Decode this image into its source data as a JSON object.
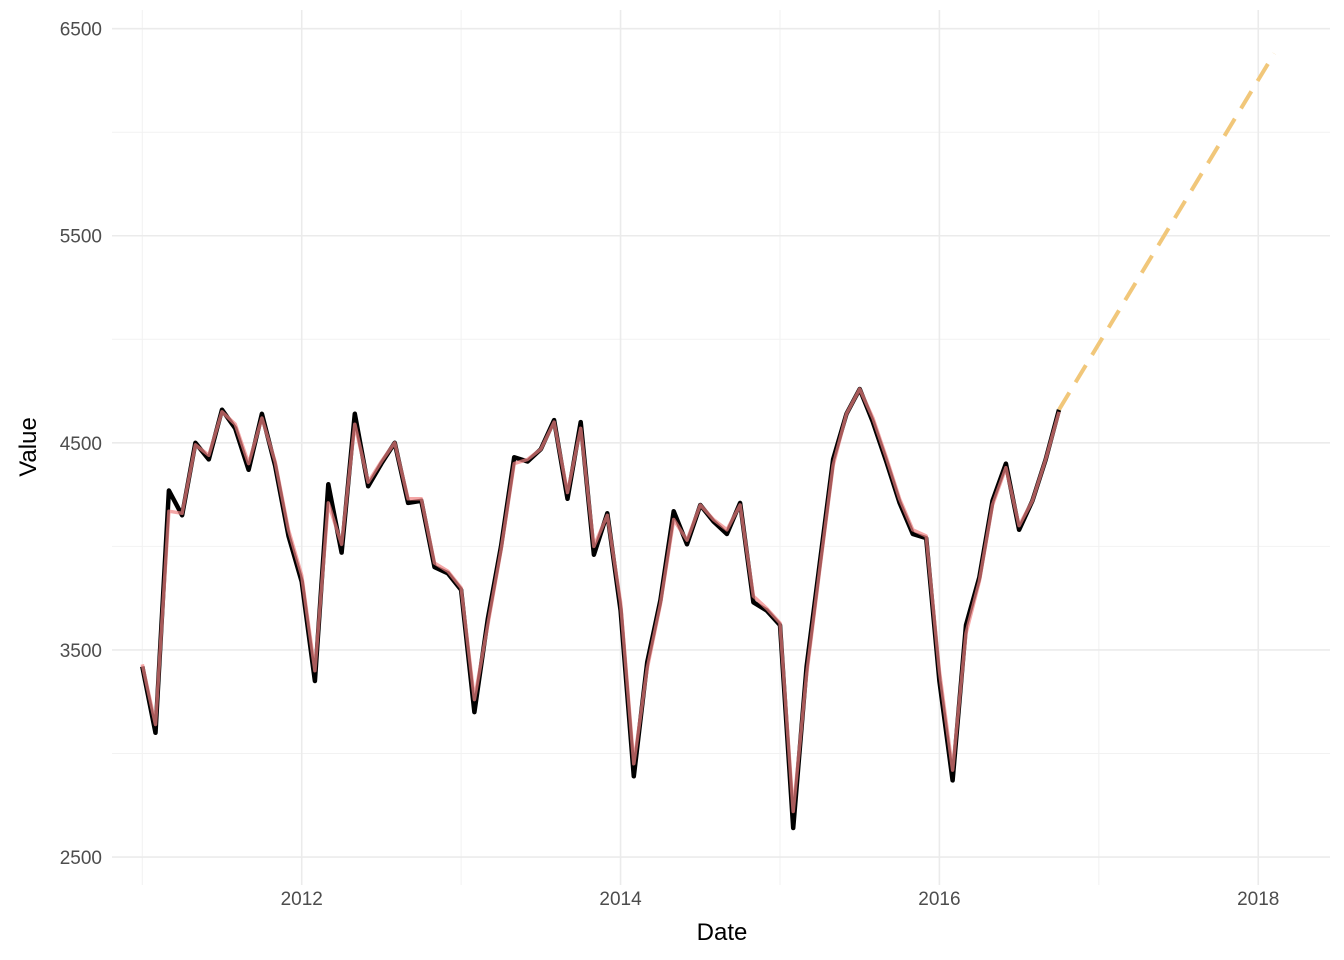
{
  "chart_data": {
    "type": "line",
    "xlabel": "Date",
    "ylabel": "Value",
    "xlim": [
      2010.81,
      2018.45
    ],
    "ylim": [
      2365,
      6590
    ],
    "x_ticks": [
      2012,
      2014,
      2016,
      2018
    ],
    "x_tick_labels": [
      "2012",
      "2014",
      "2016",
      "2018"
    ],
    "y_ticks": [
      2500,
      3500,
      4500,
      5500,
      6500
    ],
    "y_tick_labels": [
      "2500",
      "3500",
      "4500",
      "5500",
      "6500"
    ],
    "grid": true,
    "legend": "none",
    "series": [
      {
        "style": "solid",
        "color": "#000000",
        "x": [
          2011.0,
          2011.083,
          2011.167,
          2011.25,
          2011.333,
          2011.417,
          2011.5,
          2011.583,
          2011.667,
          2011.75,
          2011.833,
          2011.917,
          2012.0,
          2012.083,
          2012.167,
          2012.25,
          2012.333,
          2012.417,
          2012.5,
          2012.583,
          2012.667,
          2012.75,
          2012.833,
          2012.917,
          2013.0,
          2013.083,
          2013.167,
          2013.25,
          2013.333,
          2013.417,
          2013.5,
          2013.583,
          2013.667,
          2013.75,
          2013.833,
          2013.917,
          2014.0,
          2014.083,
          2014.167,
          2014.25,
          2014.333,
          2014.417,
          2014.5,
          2014.583,
          2014.667,
          2014.75,
          2014.833,
          2014.917,
          2015.0,
          2015.083,
          2015.167,
          2015.25,
          2015.333,
          2015.417,
          2015.5,
          2015.583,
          2015.667,
          2015.75,
          2015.833,
          2015.917,
          2016.0,
          2016.083,
          2016.167,
          2016.25,
          2016.333,
          2016.417,
          2016.5,
          2016.583,
          2016.667,
          2016.75
        ],
        "y": [
          3420,
          3100,
          4270,
          4150,
          4500,
          4420,
          4660,
          4570,
          4370,
          4640,
          4390,
          4050,
          3830,
          3350,
          4300,
          3970,
          4640,
          4290,
          4400,
          4500,
          4210,
          4220,
          3900,
          3870,
          3790,
          3200,
          3650,
          4000,
          4430,
          4410,
          4470,
          4610,
          4230,
          4600,
          3960,
          4160,
          3690,
          2890,
          3440,
          3740,
          4170,
          4010,
          4200,
          4120,
          4060,
          4210,
          3730,
          3690,
          3620,
          2640,
          3420,
          3920,
          4420,
          4640,
          4760,
          4600,
          4410,
          4210,
          4060,
          4040,
          3350,
          2870,
          3620,
          3850,
          4220,
          4400,
          4080,
          4220,
          4420,
          4660
        ]
      },
      {
        "style": "solid",
        "color": "#f08080",
        "x": [
          2011.0,
          2011.083,
          2011.167,
          2011.25,
          2011.333,
          2011.417,
          2011.5,
          2011.583,
          2011.667,
          2011.75,
          2011.833,
          2011.917,
          2012.0,
          2012.083,
          2012.167,
          2012.25,
          2012.333,
          2012.417,
          2012.5,
          2012.583,
          2012.667,
          2012.75,
          2012.833,
          2012.917,
          2013.0,
          2013.083,
          2013.167,
          2013.25,
          2013.333,
          2013.417,
          2013.5,
          2013.583,
          2013.667,
          2013.75,
          2013.833,
          2013.917,
          2014.0,
          2014.083,
          2014.167,
          2014.25,
          2014.333,
          2014.417,
          2014.5,
          2014.583,
          2014.667,
          2014.75,
          2014.833,
          2014.917,
          2015.0,
          2015.083,
          2015.167,
          2015.25,
          2015.333,
          2015.417,
          2015.5,
          2015.583,
          2015.667,
          2015.75,
          2015.833,
          2015.917,
          2016.0,
          2016.083,
          2016.167,
          2016.25,
          2016.333,
          2016.417,
          2016.5,
          2016.583,
          2016.667,
          2016.75
        ],
        "y": [
          3430,
          3140,
          4170,
          4160,
          4490,
          4440,
          4650,
          4590,
          4400,
          4620,
          4410,
          4080,
          3860,
          3400,
          4210,
          4010,
          4590,
          4310,
          4410,
          4500,
          4230,
          4230,
          3920,
          3880,
          3800,
          3260,
          3620,
          3980,
          4400,
          4420,
          4470,
          4600,
          4260,
          4570,
          4000,
          4150,
          3730,
          2950,
          3410,
          3720,
          4130,
          4030,
          4200,
          4130,
          4080,
          4200,
          3760,
          3700,
          3630,
          2720,
          3380,
          3890,
          4390,
          4640,
          4760,
          4620,
          4430,
          4230,
          4080,
          4050,
          3400,
          2920,
          3580,
          3830,
          4200,
          4380,
          4100,
          4220,
          4420,
          4650
        ]
      },
      {
        "style": "dashed",
        "color": "#f1c77a",
        "x": [
          2016.75,
          2018.1
        ],
        "y": [
          4660,
          6380
        ]
      }
    ]
  }
}
